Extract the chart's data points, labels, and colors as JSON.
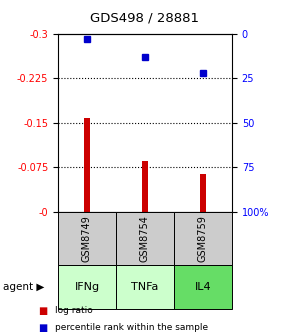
{
  "title": "GDS498 / 28881",
  "samples": [
    "GSM8749",
    "GSM8754",
    "GSM8759"
  ],
  "agents": [
    "IFNg",
    "TNFa",
    "IL4"
  ],
  "log_ratios": [
    -0.157,
    -0.085,
    -0.063
  ],
  "percentile_ranks": [
    3.0,
    13.0,
    22.0
  ],
  "bar_color": "#cc0000",
  "blue_color": "#0000cc",
  "ylim_left": [
    -0.3,
    0.0
  ],
  "ylim_right": [
    0,
    100
  ],
  "yticks_left": [
    0.0,
    -0.075,
    -0.15,
    -0.225,
    -0.3
  ],
  "ytick_labels_left": [
    "-0",
    "-0.075",
    "-0.15",
    "-0.225",
    "-0.3"
  ],
  "ytick_labels_right": [
    "100%",
    "75",
    "50",
    "25",
    "0"
  ],
  "sample_box_color": "#cccccc",
  "agent_colors": [
    "#ccffcc",
    "#ccffcc",
    "#66dd66"
  ],
  "legend_red": "log ratio",
  "legend_blue": "percentile rank within the sample",
  "bar_width": 0.12,
  "x_positions": [
    0,
    1,
    2
  ]
}
